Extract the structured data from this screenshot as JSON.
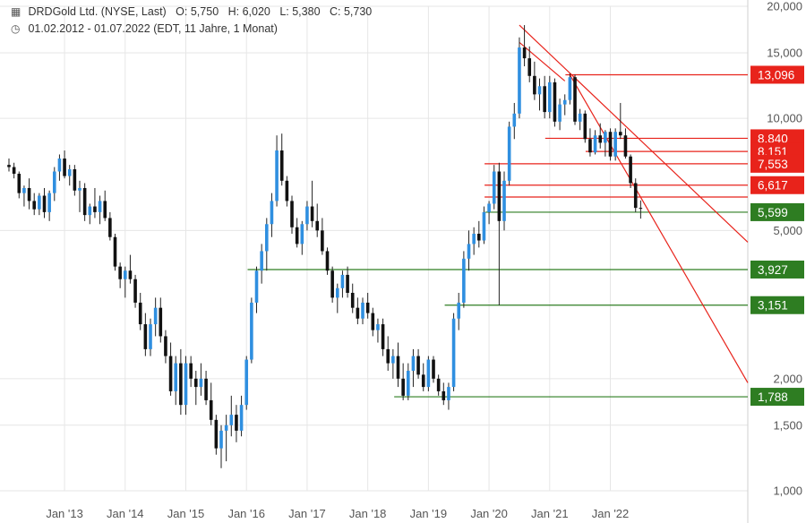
{
  "header": {
    "instrument_icon": "candlestick-icon",
    "name": "DRDGold Ltd.",
    "exchange": "(NYSE, Last)",
    "ohlc": [
      {
        "label": "O:",
        "value": "5,750"
      },
      {
        "label": "H:",
        "value": "6,020"
      },
      {
        "label": "L:",
        "value": "5,380"
      },
      {
        "label": "C:",
        "value": "5,730"
      }
    ],
    "range_icon": "clock-icon",
    "date_range": "01.02.2012 - 01.07.2022",
    "period_info": "(EDT, 11 Jahre, 1 Monat)"
  },
  "colors": {
    "up_candle": "#2f8fe0",
    "down_candle": "#111111",
    "resistance": "#e8231b",
    "support": "#2e7d22",
    "grid": "#e6e6e6",
    "axis_text": "#555555"
  },
  "chart_data": {
    "type": "candlestick",
    "scale": "log",
    "period": "monthly",
    "ylim": [
      1.0,
      20.0
    ],
    "y_ticks": [
      "1,000",
      "1,500",
      "2,000",
      "5,000",
      "10,000",
      "15,000",
      "20,000"
    ],
    "x_ticks": [
      "Jan '13",
      "Jan '14",
      "Jan '15",
      "Jan '16",
      "Jan '17",
      "Jan '18",
      "Jan '19",
      "Jan '20",
      "Jan '21",
      "Jan '22"
    ],
    "resistance_levels": [
      "13,096",
      "8,840",
      "8,151",
      "7,553",
      "6,617"
    ],
    "support_levels": [
      "5,599",
      "3,927",
      "3,151",
      "1,788"
    ],
    "candles": [
      {
        "t": "2012-02",
        "o": 7.5,
        "h": 7.8,
        "l": 7.2,
        "c": 7.4
      },
      {
        "t": "2012-03",
        "o": 7.4,
        "h": 7.6,
        "l": 6.9,
        "c": 7.1
      },
      {
        "t": "2012-04",
        "o": 7.1,
        "h": 7.2,
        "l": 6.1,
        "c": 6.3
      },
      {
        "t": "2012-05",
        "o": 6.3,
        "h": 6.6,
        "l": 5.8,
        "c": 6.5
      },
      {
        "t": "2012-06",
        "o": 6.5,
        "h": 6.9,
        "l": 5.7,
        "c": 6.0
      },
      {
        "t": "2012-07",
        "o": 6.0,
        "h": 6.3,
        "l": 5.5,
        "c": 5.7
      },
      {
        "t": "2012-08",
        "o": 5.7,
        "h": 6.3,
        "l": 5.5,
        "c": 6.2
      },
      {
        "t": "2012-09",
        "o": 6.2,
        "h": 6.5,
        "l": 5.4,
        "c": 5.6
      },
      {
        "t": "2012-10",
        "o": 5.6,
        "h": 6.4,
        "l": 5.3,
        "c": 6.3
      },
      {
        "t": "2012-11",
        "o": 6.3,
        "h": 7.4,
        "l": 6.0,
        "c": 7.2
      },
      {
        "t": "2012-12",
        "o": 7.2,
        "h": 8.0,
        "l": 6.8,
        "c": 7.8
      },
      {
        "t": "2013-01",
        "o": 7.8,
        "h": 8.2,
        "l": 6.9,
        "c": 7.0
      },
      {
        "t": "2013-02",
        "o": 7.0,
        "h": 7.5,
        "l": 6.6,
        "c": 7.3
      },
      {
        "t": "2013-03",
        "o": 7.3,
        "h": 7.5,
        "l": 6.2,
        "c": 6.4
      },
      {
        "t": "2013-04",
        "o": 6.4,
        "h": 6.8,
        "l": 5.6,
        "c": 6.5
      },
      {
        "t": "2013-05",
        "o": 6.5,
        "h": 6.7,
        "l": 5.3,
        "c": 5.5
      },
      {
        "t": "2013-06",
        "o": 5.5,
        "h": 5.9,
        "l": 5.2,
        "c": 5.8
      },
      {
        "t": "2013-07",
        "o": 5.8,
        "h": 6.5,
        "l": 5.4,
        "c": 5.6
      },
      {
        "t": "2013-08",
        "o": 5.6,
        "h": 6.2,
        "l": 5.2,
        "c": 6.0
      },
      {
        "t": "2013-09",
        "o": 6.0,
        "h": 6.4,
        "l": 5.3,
        "c": 5.4
      },
      {
        "t": "2013-10",
        "o": 5.4,
        "h": 5.6,
        "l": 4.7,
        "c": 4.8
      },
      {
        "t": "2013-11",
        "o": 4.8,
        "h": 4.9,
        "l": 3.9,
        "c": 4.0
      },
      {
        "t": "2013-12",
        "o": 4.0,
        "h": 4.1,
        "l": 3.5,
        "c": 3.7
      },
      {
        "t": "2014-01",
        "o": 3.7,
        "h": 4.0,
        "l": 3.3,
        "c": 3.9
      },
      {
        "t": "2014-02",
        "o": 3.9,
        "h": 4.3,
        "l": 3.6,
        "c": 3.7
      },
      {
        "t": "2014-03",
        "o": 3.7,
        "h": 3.8,
        "l": 3.1,
        "c": 3.2
      },
      {
        "t": "2014-04",
        "o": 3.2,
        "h": 3.4,
        "l": 2.7,
        "c": 2.8
      },
      {
        "t": "2014-05",
        "o": 2.8,
        "h": 3.0,
        "l": 2.3,
        "c": 2.4
      },
      {
        "t": "2014-06",
        "o": 2.4,
        "h": 2.9,
        "l": 2.3,
        "c": 2.8
      },
      {
        "t": "2014-07",
        "o": 2.8,
        "h": 3.3,
        "l": 2.6,
        "c": 3.1
      },
      {
        "t": "2014-08",
        "o": 3.1,
        "h": 3.3,
        "l": 2.5,
        "c": 2.6
      },
      {
        "t": "2014-09",
        "o": 2.6,
        "h": 2.7,
        "l": 2.2,
        "c": 2.3
      },
      {
        "t": "2014-10",
        "o": 2.3,
        "h": 2.5,
        "l": 1.8,
        "c": 1.85
      },
      {
        "t": "2014-11",
        "o": 1.85,
        "h": 2.3,
        "l": 1.7,
        "c": 2.2
      },
      {
        "t": "2014-12",
        "o": 2.2,
        "h": 2.4,
        "l": 1.6,
        "c": 1.7
      },
      {
        "t": "2015-01",
        "o": 1.7,
        "h": 2.3,
        "l": 1.6,
        "c": 2.2
      },
      {
        "t": "2015-02",
        "o": 2.2,
        "h": 2.3,
        "l": 1.9,
        "c": 2.0
      },
      {
        "t": "2015-03",
        "o": 2.0,
        "h": 2.1,
        "l": 1.7,
        "c": 1.9
      },
      {
        "t": "2015-04",
        "o": 1.9,
        "h": 2.2,
        "l": 1.8,
        "c": 2.0
      },
      {
        "t": "2015-05",
        "o": 2.0,
        "h": 2.1,
        "l": 1.7,
        "c": 1.75
      },
      {
        "t": "2015-06",
        "o": 1.75,
        "h": 1.95,
        "l": 1.5,
        "c": 1.55
      },
      {
        "t": "2015-07",
        "o": 1.55,
        "h": 1.6,
        "l": 1.25,
        "c": 1.3
      },
      {
        "t": "2015-08",
        "o": 1.3,
        "h": 1.5,
        "l": 1.15,
        "c": 1.45
      },
      {
        "t": "2015-09",
        "o": 1.45,
        "h": 1.6,
        "l": 1.2,
        "c": 1.5
      },
      {
        "t": "2015-10",
        "o": 1.5,
        "h": 1.8,
        "l": 1.4,
        "c": 1.6
      },
      {
        "t": "2015-11",
        "o": 1.6,
        "h": 1.7,
        "l": 1.35,
        "c": 1.45
      },
      {
        "t": "2015-12",
        "o": 1.45,
        "h": 1.8,
        "l": 1.4,
        "c": 1.7
      },
      {
        "t": "2016-01",
        "o": 1.7,
        "h": 2.3,
        "l": 1.65,
        "c": 2.25
      },
      {
        "t": "2016-02",
        "o": 2.25,
        "h": 3.3,
        "l": 2.2,
        "c": 3.2
      },
      {
        "t": "2016-03",
        "o": 3.2,
        "h": 4.0,
        "l": 3.0,
        "c": 3.9
      },
      {
        "t": "2016-04",
        "o": 3.9,
        "h": 4.6,
        "l": 3.6,
        "c": 4.4
      },
      {
        "t": "2016-05",
        "o": 4.4,
        "h": 5.4,
        "l": 3.9,
        "c": 5.2
      },
      {
        "t": "2016-06",
        "o": 5.2,
        "h": 6.3,
        "l": 4.8,
        "c": 6.0
      },
      {
        "t": "2016-07",
        "o": 6.0,
        "h": 9.0,
        "l": 5.8,
        "c": 8.2
      },
      {
        "t": "2016-08",
        "o": 8.2,
        "h": 9.1,
        "l": 6.6,
        "c": 6.8
      },
      {
        "t": "2016-09",
        "o": 6.8,
        "h": 7.0,
        "l": 5.8,
        "c": 6.0
      },
      {
        "t": "2016-10",
        "o": 6.0,
        "h": 6.2,
        "l": 4.9,
        "c": 5.1
      },
      {
        "t": "2016-11",
        "o": 5.1,
        "h": 5.4,
        "l": 4.5,
        "c": 4.6
      },
      {
        "t": "2016-12",
        "o": 4.6,
        "h": 5.3,
        "l": 4.3,
        "c": 5.2
      },
      {
        "t": "2017-01",
        "o": 5.2,
        "h": 6.0,
        "l": 5.0,
        "c": 5.8
      },
      {
        "t": "2017-02",
        "o": 5.8,
        "h": 6.8,
        "l": 5.1,
        "c": 5.3
      },
      {
        "t": "2017-03",
        "o": 5.3,
        "h": 5.9,
        "l": 4.8,
        "c": 5.0
      },
      {
        "t": "2017-04",
        "o": 5.0,
        "h": 5.4,
        "l": 4.3,
        "c": 4.4
      },
      {
        "t": "2017-05",
        "o": 4.4,
        "h": 4.5,
        "l": 3.8,
        "c": 3.9
      },
      {
        "t": "2017-06",
        "o": 3.9,
        "h": 4.0,
        "l": 3.2,
        "c": 3.3
      },
      {
        "t": "2017-07",
        "o": 3.3,
        "h": 3.6,
        "l": 3.0,
        "c": 3.5
      },
      {
        "t": "2017-08",
        "o": 3.5,
        "h": 3.9,
        "l": 3.3,
        "c": 3.8
      },
      {
        "t": "2017-09",
        "o": 3.8,
        "h": 4.0,
        "l": 3.3,
        "c": 3.4
      },
      {
        "t": "2017-10",
        "o": 3.4,
        "h": 3.6,
        "l": 3.0,
        "c": 3.1
      },
      {
        "t": "2017-11",
        "o": 3.1,
        "h": 3.3,
        "l": 2.8,
        "c": 2.9
      },
      {
        "t": "2017-12",
        "o": 2.9,
        "h": 3.3,
        "l": 2.8,
        "c": 3.2
      },
      {
        "t": "2018-01",
        "o": 3.2,
        "h": 3.4,
        "l": 2.9,
        "c": 3.0
      },
      {
        "t": "2018-02",
        "o": 3.0,
        "h": 3.1,
        "l": 2.6,
        "c": 2.7
      },
      {
        "t": "2018-03",
        "o": 2.7,
        "h": 2.9,
        "l": 2.5,
        "c": 2.8
      },
      {
        "t": "2018-04",
        "o": 2.8,
        "h": 2.9,
        "l": 2.3,
        "c": 2.4
      },
      {
        "t": "2018-05",
        "o": 2.4,
        "h": 2.6,
        "l": 2.1,
        "c": 2.2
      },
      {
        "t": "2018-06",
        "o": 2.2,
        "h": 2.4,
        "l": 2.0,
        "c": 2.3
      },
      {
        "t": "2018-07",
        "o": 2.3,
        "h": 2.5,
        "l": 1.9,
        "c": 2.0
      },
      {
        "t": "2018-08",
        "o": 2.0,
        "h": 2.2,
        "l": 1.75,
        "c": 1.8
      },
      {
        "t": "2018-09",
        "o": 1.8,
        "h": 2.2,
        "l": 1.75,
        "c": 2.1
      },
      {
        "t": "2018-10",
        "o": 2.1,
        "h": 2.4,
        "l": 1.9,
        "c": 2.3
      },
      {
        "t": "2018-11",
        "o": 2.3,
        "h": 2.4,
        "l": 2.0,
        "c": 2.05
      },
      {
        "t": "2018-12",
        "o": 2.05,
        "h": 2.2,
        "l": 1.85,
        "c": 1.9
      },
      {
        "t": "2019-01",
        "o": 1.9,
        "h": 2.3,
        "l": 1.85,
        "c": 2.25
      },
      {
        "t": "2019-02",
        "o": 2.25,
        "h": 2.3,
        "l": 1.95,
        "c": 2.0
      },
      {
        "t": "2019-03",
        "o": 2.0,
        "h": 2.05,
        "l": 1.8,
        "c": 1.85
      },
      {
        "t": "2019-04",
        "o": 1.85,
        "h": 1.95,
        "l": 1.7,
        "c": 1.75
      },
      {
        "t": "2019-05",
        "o": 1.75,
        "h": 1.95,
        "l": 1.65,
        "c": 1.9
      },
      {
        "t": "2019-06",
        "o": 1.9,
        "h": 3.0,
        "l": 1.85,
        "c": 2.9
      },
      {
        "t": "2019-07",
        "o": 2.9,
        "h": 3.4,
        "l": 2.7,
        "c": 3.2
      },
      {
        "t": "2019-08",
        "o": 3.2,
        "h": 4.4,
        "l": 3.1,
        "c": 4.2
      },
      {
        "t": "2019-09",
        "o": 4.2,
        "h": 5.0,
        "l": 3.9,
        "c": 4.6
      },
      {
        "t": "2019-10",
        "o": 4.6,
        "h": 5.1,
        "l": 4.3,
        "c": 4.9
      },
      {
        "t": "2019-11",
        "o": 4.9,
        "h": 5.3,
        "l": 4.5,
        "c": 4.7
      },
      {
        "t": "2019-12",
        "o": 4.7,
        "h": 5.8,
        "l": 4.6,
        "c": 5.6
      },
      {
        "t": "2020-01",
        "o": 5.6,
        "h": 6.0,
        "l": 5.2,
        "c": 5.9
      },
      {
        "t": "2020-02",
        "o": 5.9,
        "h": 7.5,
        "l": 5.7,
        "c": 7.2
      },
      {
        "t": "2020-03",
        "o": 7.2,
        "h": 7.6,
        "l": 3.15,
        "c": 5.3
      },
      {
        "t": "2020-04",
        "o": 5.3,
        "h": 7.2,
        "l": 5.0,
        "c": 6.8
      },
      {
        "t": "2020-05",
        "o": 6.8,
        "h": 9.8,
        "l": 6.6,
        "c": 9.5
      },
      {
        "t": "2020-06",
        "o": 9.5,
        "h": 11.0,
        "l": 8.8,
        "c": 10.3
      },
      {
        "t": "2020-07",
        "o": 10.3,
        "h": 16.5,
        "l": 10.0,
        "c": 15.5
      },
      {
        "t": "2020-08",
        "o": 15.5,
        "h": 17.8,
        "l": 13.8,
        "c": 14.5
      },
      {
        "t": "2020-09",
        "o": 14.5,
        "h": 15.6,
        "l": 12.5,
        "c": 13.0
      },
      {
        "t": "2020-10",
        "o": 13.0,
        "h": 14.2,
        "l": 11.2,
        "c": 11.6
      },
      {
        "t": "2020-11",
        "o": 11.6,
        "h": 12.8,
        "l": 10.5,
        "c": 12.2
      },
      {
        "t": "2020-12",
        "o": 12.2,
        "h": 13.0,
        "l": 10.0,
        "c": 10.4
      },
      {
        "t": "2021-01",
        "o": 10.4,
        "h": 13.0,
        "l": 10.0,
        "c": 12.5
      },
      {
        "t": "2021-02",
        "o": 12.5,
        "h": 12.8,
        "l": 9.5,
        "c": 9.8
      },
      {
        "t": "2021-03",
        "o": 9.8,
        "h": 11.3,
        "l": 9.3,
        "c": 10.9
      },
      {
        "t": "2021-04",
        "o": 10.9,
        "h": 11.6,
        "l": 10.2,
        "c": 11.2
      },
      {
        "t": "2021-05",
        "o": 11.2,
        "h": 13.2,
        "l": 10.9,
        "c": 12.9
      },
      {
        "t": "2021-06",
        "o": 12.9,
        "h": 13.1,
        "l": 9.6,
        "c": 9.8
      },
      {
        "t": "2021-07",
        "o": 9.8,
        "h": 10.6,
        "l": 9.3,
        "c": 10.3
      },
      {
        "t": "2021-08",
        "o": 10.3,
        "h": 10.5,
        "l": 8.6,
        "c": 8.8
      },
      {
        "t": "2021-09",
        "o": 8.8,
        "h": 9.4,
        "l": 7.9,
        "c": 8.1
      },
      {
        "t": "2021-10",
        "o": 8.1,
        "h": 9.3,
        "l": 8.0,
        "c": 9.0
      },
      {
        "t": "2021-11",
        "o": 9.0,
        "h": 9.7,
        "l": 8.3,
        "c": 8.6
      },
      {
        "t": "2021-12",
        "o": 8.6,
        "h": 9.3,
        "l": 7.9,
        "c": 9.2
      },
      {
        "t": "2022-01",
        "o": 9.2,
        "h": 9.4,
        "l": 7.7,
        "c": 7.9
      },
      {
        "t": "2022-02",
        "o": 7.9,
        "h": 9.4,
        "l": 7.7,
        "c": 9.2
      },
      {
        "t": "2022-03",
        "o": 9.2,
        "h": 11.0,
        "l": 8.8,
        "c": 9.0
      },
      {
        "t": "2022-04",
        "o": 9.0,
        "h": 9.4,
        "l": 7.8,
        "c": 7.9
      },
      {
        "t": "2022-05",
        "o": 7.9,
        "h": 8.0,
        "l": 6.5,
        "c": 6.7
      },
      {
        "t": "2022-06",
        "o": 6.7,
        "h": 6.9,
        "l": 5.6,
        "c": 5.75
      },
      {
        "t": "2022-07",
        "o": 5.75,
        "h": 6.02,
        "l": 5.38,
        "c": 5.73
      }
    ]
  }
}
